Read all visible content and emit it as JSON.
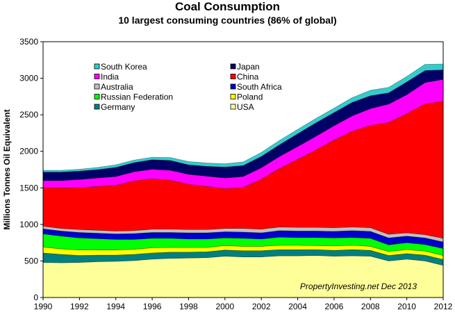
{
  "chart_data": {
    "type": "area",
    "stacked": true,
    "title": "Coal Consumption",
    "subtitle": "10 largest consuming countries (86% of global)",
    "xlabel": "",
    "ylabel": "Millions Tonnes Oil Equivalent",
    "xlim": [
      1990,
      2012
    ],
    "ylim": [
      0,
      3500
    ],
    "x_ticks": [
      1990,
      1992,
      1994,
      1996,
      1998,
      2000,
      2002,
      2004,
      2006,
      2008,
      2010,
      2012
    ],
    "y_ticks": [
      0,
      500,
      1000,
      1500,
      2000,
      2500,
      3000,
      3500
    ],
    "grid": false,
    "legend_position": "upper-left",
    "annotation": "PropertyInvesting.net  Dec 2013",
    "x": [
      1990,
      1991,
      1992,
      1993,
      1994,
      1995,
      1996,
      1997,
      1998,
      1999,
      2000,
      2001,
      2002,
      2003,
      2004,
      2005,
      2006,
      2007,
      2008,
      2009,
      2010,
      2011,
      2012
    ],
    "series": [
      {
        "name": "USA",
        "color": "#ffff99",
        "values": [
          480,
          475,
          480,
          490,
          495,
          505,
          525,
          535,
          540,
          545,
          565,
          555,
          555,
          570,
          570,
          575,
          565,
          570,
          565,
          500,
          525,
          500,
          440
        ]
      },
      {
        "name": "Germany",
        "color": "#008080",
        "values": [
          130,
          115,
          95,
          90,
          85,
          85,
          85,
          85,
          80,
          80,
          85,
          85,
          85,
          85,
          85,
          80,
          80,
          85,
          80,
          75,
          75,
          80,
          80
        ]
      },
      {
        "name": "Poland",
        "color": "#ffff00",
        "values": [
          80,
          75,
          75,
          70,
          70,
          70,
          70,
          65,
          65,
          60,
          60,
          60,
          60,
          60,
          60,
          55,
          60,
          60,
          55,
          55,
          55,
          55,
          55
        ]
      },
      {
        "name": "Russian Federation",
        "color": "#00ff00",
        "values": [
          180,
          175,
          165,
          155,
          145,
          135,
          130,
          125,
          115,
          115,
          105,
          110,
          100,
          110,
          105,
          110,
          110,
          105,
          110,
          90,
          95,
          90,
          95
        ]
      },
      {
        "name": "South Africa",
        "color": "#0000cc",
        "values": [
          70,
          70,
          75,
          75,
          75,
          80,
          80,
          80,
          85,
          85,
          85,
          85,
          85,
          90,
          90,
          90,
          90,
          95,
          95,
          95,
          90,
          90,
          90
        ]
      },
      {
        "name": "Australia",
        "color": "#c0c0c0",
        "values": [
          35,
          35,
          40,
          40,
          40,
          40,
          45,
          45,
          45,
          45,
          45,
          50,
          50,
          50,
          50,
          50,
          50,
          50,
          50,
          50,
          45,
          45,
          50
        ]
      },
      {
        "name": "China",
        "color": "#ff0000",
        "values": [
          530,
          555,
          575,
          600,
          625,
          680,
          690,
          670,
          620,
          590,
          545,
          560,
          685,
          800,
          930,
          1060,
          1200,
          1310,
          1400,
          1530,
          1630,
          1790,
          1875
        ]
      },
      {
        "name": "India",
        "color": "#ff00ff",
        "values": [
          95,
          100,
          110,
          115,
          120,
          125,
          130,
          135,
          135,
          140,
          145,
          150,
          155,
          165,
          175,
          185,
          195,
          210,
          230,
          250,
          260,
          290,
          300
        ]
      },
      {
        "name": "Japan",
        "color": "#000066",
        "values": [
          115,
          115,
          115,
          115,
          125,
          125,
          130,
          135,
          130,
          135,
          150,
          150,
          155,
          160,
          175,
          185,
          180,
          185,
          175,
          155,
          175,
          165,
          130
        ]
      },
      {
        "name": "South Korea",
        "color": "#33cccc",
        "values": [
          25,
          25,
          25,
          30,
          35,
          35,
          35,
          40,
          45,
          45,
          45,
          50,
          55,
          60,
          60,
          60,
          60,
          65,
          75,
          75,
          75,
          85,
          80
        ]
      }
    ]
  }
}
